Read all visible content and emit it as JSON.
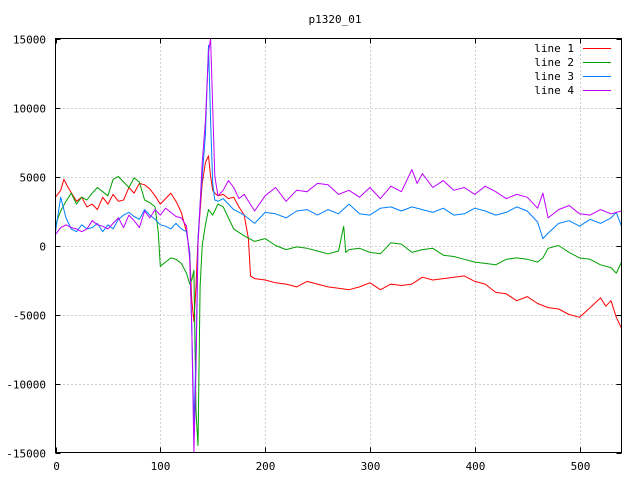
{
  "chart_data": {
    "type": "line",
    "title": "p1320_01",
    "xlabel": "",
    "ylabel": "",
    "xlim": [
      0,
      540
    ],
    "ylim": [
      -15000,
      15000
    ],
    "xticks": [
      0,
      100,
      200,
      300,
      400,
      500
    ],
    "yticks": [
      -15000,
      -10000,
      -5000,
      0,
      5000,
      10000,
      15000
    ],
    "grid": true,
    "legend_position": "top-right",
    "series": [
      {
        "name": "line 1",
        "color": "#ff0000",
        "x": [
          0,
          5,
          8,
          12,
          20,
          25,
          30,
          35,
          40,
          45,
          50,
          55,
          60,
          65,
          70,
          75,
          80,
          85,
          90,
          95,
          100,
          105,
          110,
          115,
          120,
          125,
          128,
          130,
          132,
          134,
          136,
          138,
          140,
          143,
          146,
          148,
          150,
          152,
          155,
          160,
          165,
          170,
          175,
          180,
          184,
          186,
          190,
          200,
          210,
          220,
          230,
          240,
          250,
          260,
          270,
          280,
          290,
          300,
          310,
          320,
          330,
          340,
          350,
          360,
          370,
          380,
          390,
          400,
          410,
          420,
          430,
          440,
          450,
          460,
          470,
          480,
          490,
          500,
          510,
          520,
          525,
          530,
          535,
          540
        ],
        "values": [
          3500,
          4000,
          4800,
          4200,
          3200,
          3500,
          2800,
          3000,
          2600,
          3500,
          3000,
          3700,
          3200,
          3300,
          4200,
          3800,
          4500,
          4400,
          4100,
          3600,
          3000,
          3400,
          3800,
          3200,
          2400,
          1000,
          -500,
          -4000,
          -5500,
          -3000,
          500,
          2500,
          4500,
          6000,
          6500,
          5000,
          4000,
          3800,
          3600,
          3700,
          3400,
          3500,
          2800,
          2200,
          500,
          -2200,
          -2400,
          -2500,
          -2700,
          -2800,
          -3000,
          -2600,
          -2800,
          -3000,
          -3100,
          -3200,
          -3000,
          -2700,
          -3200,
          -2800,
          -2900,
          -2800,
          -2300,
          -2500,
          -2400,
          -2300,
          -2200,
          -2600,
          -2800,
          -3400,
          -3500,
          -4000,
          -3700,
          -4200,
          -4500,
          -4600,
          -5000,
          -5200,
          -4500,
          -3800,
          -4400,
          -4000,
          -5200,
          -6000
        ]
      },
      {
        "name": "line 2",
        "color": "#00a000",
        "x": [
          0,
          5,
          10,
          15,
          20,
          25,
          30,
          35,
          40,
          45,
          50,
          55,
          60,
          65,
          70,
          75,
          80,
          85,
          90,
          95,
          98,
          100,
          105,
          110,
          115,
          120,
          125,
          128,
          130,
          132,
          134,
          136,
          138,
          140,
          143,
          146,
          150,
          155,
          160,
          170,
          180,
          190,
          200,
          210,
          220,
          230,
          240,
          250,
          260,
          270,
          275,
          276,
          277,
          280,
          290,
          300,
          310,
          320,
          330,
          340,
          350,
          360,
          370,
          380,
          390,
          400,
          410,
          420,
          430,
          440,
          450,
          460,
          465,
          470,
          480,
          490,
          500,
          510,
          520,
          530,
          535,
          540
        ],
        "values": [
          1500,
          2500,
          3200,
          3800,
          3000,
          3500,
          3300,
          3800,
          4200,
          3900,
          3600,
          4800,
          5000,
          4600,
          4200,
          4900,
          4600,
          3300,
          3100,
          2800,
          1000,
          -1500,
          -1200,
          -900,
          -1000,
          -1300,
          -2000,
          -2800,
          -2500,
          -1800,
          -12000,
          -14500,
          -3000,
          0,
          1500,
          2600,
          2200,
          3000,
          2800,
          1200,
          700,
          300,
          500,
          0,
          -300,
          -100,
          -200,
          -400,
          -600,
          -400,
          1400,
          400,
          -500,
          -300,
          -200,
          -500,
          -600,
          200,
          100,
          -500,
          -300,
          -200,
          -700,
          -800,
          -1000,
          -1200,
          -1300,
          -1400,
          -1000,
          -900,
          -1000,
          -1200,
          -900,
          -200,
          0,
          -500,
          -900,
          -1000,
          -1400,
          -1600,
          -2000,
          -1200
        ]
      },
      {
        "name": "line 3",
        "color": "#0080ff",
        "x": [
          0,
          5,
          10,
          15,
          20,
          25,
          30,
          35,
          40,
          45,
          50,
          55,
          60,
          65,
          70,
          75,
          80,
          85,
          90,
          95,
          100,
          105,
          110,
          115,
          120,
          125,
          128,
          130,
          132,
          134,
          136,
          138,
          140,
          143,
          146,
          148,
          150,
          152,
          155,
          160,
          170,
          180,
          190,
          200,
          210,
          220,
          230,
          240,
          250,
          260,
          270,
          280,
          290,
          300,
          310,
          320,
          330,
          340,
          350,
          360,
          370,
          380,
          390,
          400,
          410,
          420,
          430,
          440,
          450,
          460,
          465,
          470,
          480,
          490,
          500,
          510,
          520,
          530,
          535,
          540
        ],
        "values": [
          1000,
          3500,
          2000,
          1200,
          1000,
          1500,
          1200,
          1300,
          1600,
          1000,
          1500,
          1200,
          1900,
          2200,
          2400,
          2100,
          1900,
          2600,
          2200,
          1900,
          1500,
          1400,
          1200,
          1600,
          1200,
          1000,
          -500,
          -6000,
          -13000,
          -8000,
          500,
          3000,
          5000,
          8000,
          14500,
          9000,
          4500,
          3300,
          3200,
          3400,
          2600,
          2200,
          1600,
          2400,
          2300,
          2000,
          2500,
          2600,
          2200,
          2600,
          2300,
          3000,
          2300,
          2200,
          2700,
          2800,
          2500,
          2800,
          2600,
          2400,
          2700,
          2200,
          2300,
          2700,
          2500,
          2200,
          2400,
          2800,
          2500,
          1700,
          500,
          900,
          1600,
          1800,
          1400,
          1900,
          1600,
          2000,
          2400,
          1400
        ]
      },
      {
        "name": "line 4",
        "color": "#c000ff",
        "x": [
          0,
          5,
          10,
          15,
          20,
          25,
          30,
          35,
          40,
          45,
          50,
          55,
          60,
          65,
          70,
          75,
          80,
          85,
          90,
          95,
          100,
          105,
          110,
          115,
          120,
          125,
          128,
          130,
          132,
          134,
          136,
          138,
          140,
          143,
          146,
          148,
          150,
          152,
          155,
          160,
          165,
          170,
          175,
          180,
          190,
          200,
          210,
          220,
          230,
          240,
          250,
          260,
          270,
          280,
          290,
          300,
          310,
          320,
          330,
          340,
          345,
          350,
          360,
          370,
          380,
          390,
          400,
          410,
          420,
          430,
          440,
          450,
          460,
          465,
          470,
          480,
          490,
          500,
          510,
          520,
          530,
          540
        ],
        "values": [
          800,
          1300,
          1500,
          1300,
          1200,
          1000,
          1200,
          1800,
          1500,
          1400,
          1200,
          1600,
          2000,
          1300,
          2200,
          1800,
          1300,
          2500,
          2000,
          2600,
          2200,
          2700,
          2400,
          2100,
          2000,
          1400,
          -1000,
          -6000,
          -15000,
          -9000,
          0,
          3000,
          6000,
          9000,
          14000,
          15000,
          10000,
          5000,
          3600,
          4000,
          4700,
          4200,
          3400,
          3700,
          2500,
          3600,
          4200,
          3200,
          4000,
          3900,
          4500,
          4400,
          3700,
          4000,
          3500,
          4200,
          3400,
          4300,
          3900,
          5500,
          4500,
          5200,
          4200,
          4700,
          4000,
          4200,
          3700,
          4300,
          3900,
          3400,
          3700,
          3500,
          2700,
          3800,
          2000,
          2600,
          2900,
          2300,
          2200,
          2600,
          2300,
          2500
        ]
      }
    ]
  }
}
